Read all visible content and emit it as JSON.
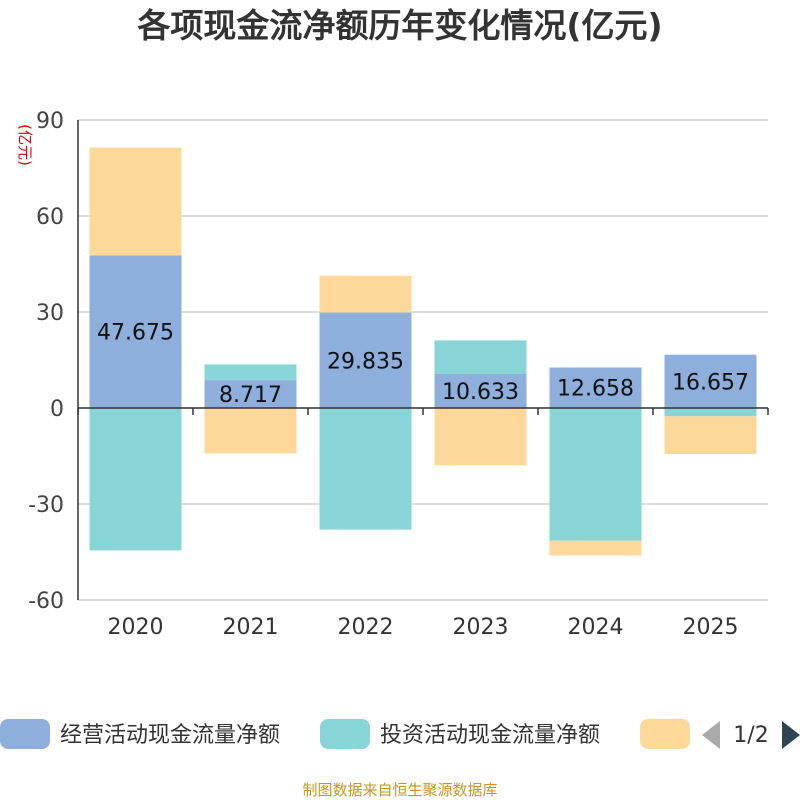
{
  "chart_data": {
    "type": "bar",
    "stacked": true,
    "title": "各项现金流净额历年变化情况(亿元)",
    "ylabel": "(亿元)",
    "ylim": [
      -60,
      90
    ],
    "yticks": [
      90,
      60,
      30,
      0,
      -30,
      -60
    ],
    "categories": [
      "2020",
      "2021",
      "2022",
      "2023",
      "2024",
      "2025"
    ],
    "series": [
      {
        "name": "经营活动现金流量净额",
        "color": "#8eaedb",
        "values": [
          47.675,
          8.717,
          29.835,
          10.633,
          12.658,
          16.657
        ],
        "labels": [
          "47.675",
          "8.717",
          "29.835",
          "10.633",
          "12.658",
          "16.657"
        ]
      },
      {
        "name": "投资活动现金流量净额",
        "color": "#88d5d8",
        "values": [
          -44.5,
          4.9,
          -38.0,
          10.5,
          -41.5,
          -2.6
        ]
      },
      {
        "name": "",
        "color": "#fdd89a",
        "values": [
          33.7,
          -14.2,
          11.5,
          -17.9,
          -4.6,
          -11.8
        ]
      }
    ],
    "legend": {
      "position": "bottom",
      "page": "1/2"
    },
    "grid": true
  },
  "source": "制图数据来自恒生聚源数据库"
}
